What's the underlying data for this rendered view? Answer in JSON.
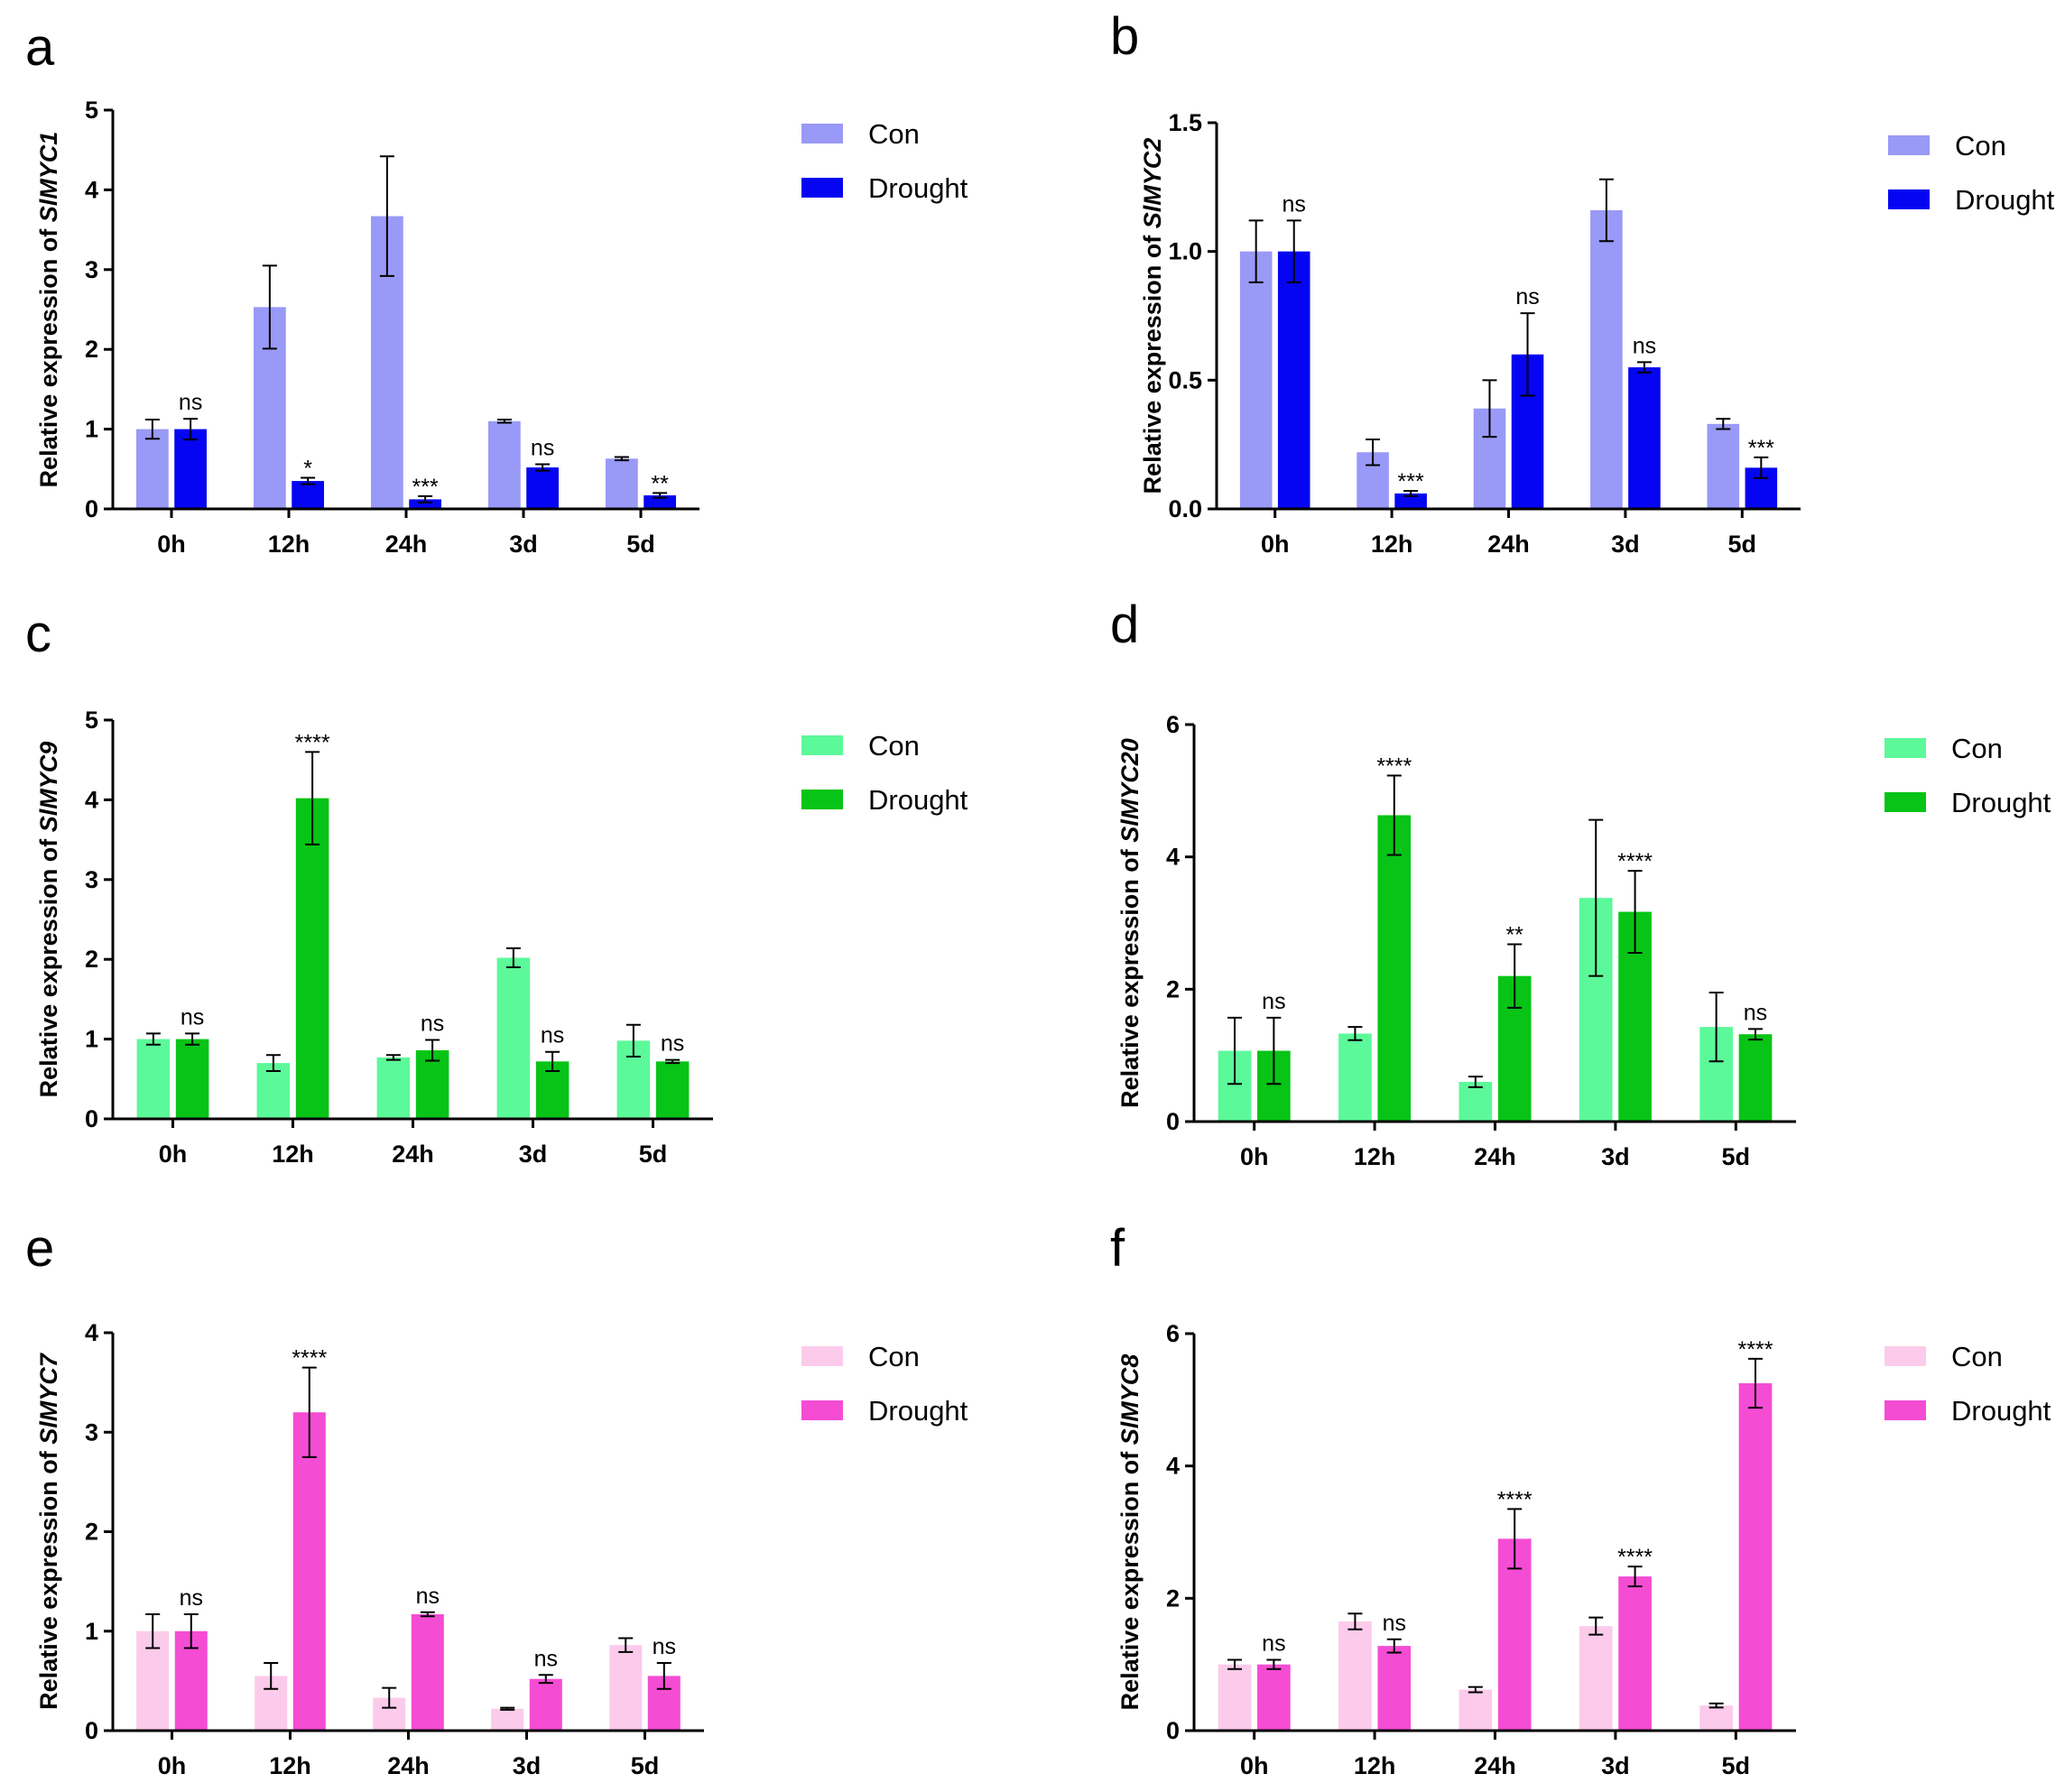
{
  "chart_data": [
    {
      "id": "a",
      "type": "bar",
      "panel_label": "a",
      "ylabel_prefix": "Relative expression of ",
      "ylabel_gene": "SlMYC1",
      "ylim": [
        0,
        5
      ],
      "yticks": [
        "0",
        "1",
        "2",
        "3",
        "4",
        "5"
      ],
      "categories": [
        "0h",
        "12h",
        "24h",
        "3d",
        "5d"
      ],
      "colors": {
        "con": "#9999f7",
        "drought": "#0505f2"
      },
      "legend": [
        "Con",
        "Drought"
      ],
      "legend_position": "right",
      "series": [
        {
          "name": "Con",
          "values": [
            1.0,
            2.53,
            3.67,
            1.1,
            0.63
          ],
          "errors": [
            0.12,
            0.52,
            0.75,
            0.02,
            0.02
          ]
        },
        {
          "name": "Drought",
          "values": [
            1.0,
            0.35,
            0.12,
            0.52,
            0.17
          ],
          "errors": [
            0.13,
            0.04,
            0.04,
            0.04,
            0.03
          ]
        }
      ],
      "significance": [
        "ns",
        "*",
        "***",
        "ns",
        "**"
      ]
    },
    {
      "id": "b",
      "type": "bar",
      "panel_label": "b",
      "ylabel_prefix": "Relative expression of ",
      "ylabel_gene": "SlMYC2",
      "ylim": [
        0,
        1.5
      ],
      "yticks": [
        "0.0",
        "0.5",
        "1.0",
        "1.5"
      ],
      "categories": [
        "0h",
        "12h",
        "24h",
        "3d",
        "5d"
      ],
      "colors": {
        "con": "#9999f7",
        "drought": "#0505f2"
      },
      "legend": [
        "Con",
        "Drought"
      ],
      "legend_position": "right",
      "series": [
        {
          "name": "Con",
          "values": [
            1.0,
            0.22,
            0.39,
            1.16,
            0.33
          ],
          "errors": [
            0.12,
            0.05,
            0.11,
            0.12,
            0.02
          ]
        },
        {
          "name": "Drought",
          "values": [
            1.0,
            0.06,
            0.6,
            0.55,
            0.16
          ],
          "errors": [
            0.12,
            0.01,
            0.16,
            0.02,
            0.04
          ]
        }
      ],
      "significance": [
        "ns",
        "***",
        "ns",
        "ns",
        "***"
      ]
    },
    {
      "id": "c",
      "type": "bar",
      "panel_label": "c",
      "ylabel_prefix": "Relative expression of ",
      "ylabel_gene": "SlMYC9",
      "ylim": [
        0,
        5
      ],
      "yticks": [
        "0",
        "1",
        "2",
        "3",
        "4",
        "5"
      ],
      "categories": [
        "0h",
        "12h",
        "24h",
        "3d",
        "5d"
      ],
      "colors": {
        "con": "#5cf99a",
        "drought": "#07c416"
      },
      "legend": [
        "Con",
        "Drought"
      ],
      "legend_position": "right",
      "series": [
        {
          "name": "Con",
          "values": [
            1.0,
            0.7,
            0.77,
            2.02,
            0.98
          ],
          "errors": [
            0.07,
            0.1,
            0.03,
            0.12,
            0.2
          ]
        },
        {
          "name": "Drought",
          "values": [
            1.0,
            4.02,
            0.86,
            0.72,
            0.72
          ],
          "errors": [
            0.07,
            0.58,
            0.13,
            0.12,
            0.02
          ]
        }
      ],
      "significance": [
        "ns",
        "****",
        "ns",
        "ns",
        "ns"
      ]
    },
    {
      "id": "d",
      "type": "bar",
      "panel_label": "d",
      "ylabel_prefix": "Relative expression of ",
      "ylabel_gene": "SlMYC20",
      "ylim": [
        0,
        6
      ],
      "yticks": [
        "0",
        "2",
        "4",
        "6"
      ],
      "categories": [
        "0h",
        "12h",
        "24h",
        "3d",
        "5d"
      ],
      "colors": {
        "con": "#5cf99a",
        "drought": "#07c416"
      },
      "legend": [
        "Con",
        "Drought"
      ],
      "legend_position": "right",
      "series": [
        {
          "name": "Con",
          "values": [
            1.07,
            1.33,
            0.6,
            3.38,
            1.43
          ],
          "errors": [
            0.5,
            0.1,
            0.08,
            1.18,
            0.52
          ]
        },
        {
          "name": "Drought",
          "values": [
            1.07,
            4.63,
            2.2,
            3.17,
            1.32
          ],
          "errors": [
            0.5,
            0.6,
            0.48,
            0.62,
            0.08
          ]
        }
      ],
      "significance": [
        "ns",
        "****",
        "**",
        "****",
        "ns"
      ]
    },
    {
      "id": "e",
      "type": "bar",
      "panel_label": "e",
      "ylabel_prefix": "Relative expression of ",
      "ylabel_gene": "SlMYC7",
      "ylim": [
        0,
        4
      ],
      "yticks": [
        "0",
        "1",
        "2",
        "3",
        "4"
      ],
      "categories": [
        "0h",
        "12h",
        "24h",
        "3d",
        "5d"
      ],
      "colors": {
        "con": "#fccbeb",
        "drought": "#f54cd4"
      },
      "legend": [
        "Con",
        "Drought"
      ],
      "legend_position": "right",
      "series": [
        {
          "name": "Con",
          "values": [
            1.0,
            0.55,
            0.33,
            0.22,
            0.86
          ],
          "errors": [
            0.17,
            0.13,
            0.1,
            0.01,
            0.07
          ]
        },
        {
          "name": "Drought",
          "values": [
            1.0,
            3.2,
            1.17,
            0.52,
            0.55
          ],
          "errors": [
            0.17,
            0.45,
            0.02,
            0.04,
            0.13
          ]
        }
      ],
      "significance": [
        "ns",
        "****",
        "ns",
        "ns",
        "ns"
      ]
    },
    {
      "id": "f",
      "type": "bar",
      "panel_label": "f",
      "ylabel_prefix": "Relative expression of ",
      "ylabel_gene": "SlMYC8",
      "ylim": [
        0,
        6
      ],
      "yticks": [
        "0",
        "2",
        "4",
        "6"
      ],
      "categories": [
        "0h",
        "12h",
        "24h",
        "3d",
        "5d"
      ],
      "colors": {
        "con": "#fccbeb",
        "drought": "#f54cd4"
      },
      "legend": [
        "Con",
        "Drought"
      ],
      "legend_position": "right",
      "series": [
        {
          "name": "Con",
          "values": [
            1.0,
            1.65,
            0.62,
            1.58,
            0.38
          ],
          "errors": [
            0.07,
            0.12,
            0.04,
            0.13,
            0.03
          ]
        },
        {
          "name": "Drought",
          "values": [
            1.0,
            1.28,
            2.9,
            2.33,
            5.25
          ],
          "errors": [
            0.07,
            0.1,
            0.45,
            0.15,
            0.37
          ]
        }
      ],
      "significance": [
        "ns",
        "ns",
        "****",
        "****",
        "****"
      ]
    }
  ]
}
